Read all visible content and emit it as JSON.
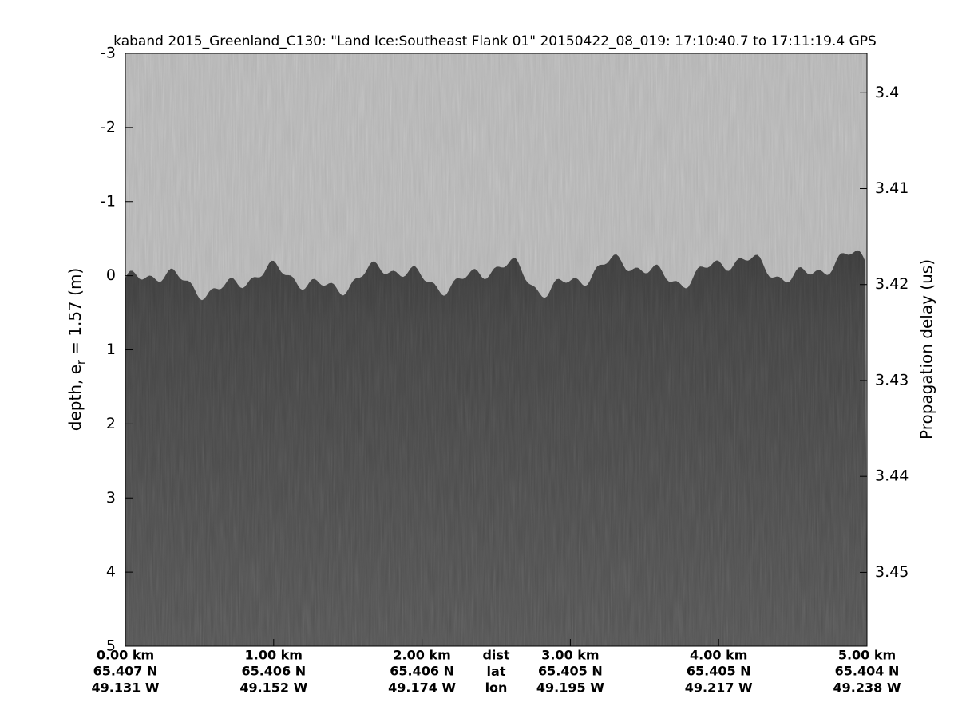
{
  "chart_data": {
    "type": "radargram",
    "title": "kaband 2015_Greenland_C130: \"Land Ice:Southeast Flank 01\"  20150422_08_019: 17:10:40.7 to 17:11:19.4 GPS",
    "ylabel": {
      "main": "depth, e",
      "sub": "r",
      "rest": " = 1.57 (m)"
    },
    "y2label": "Propagation delay (us)",
    "ylim": [
      -3,
      5
    ],
    "yticks": [
      -3,
      -2,
      -1,
      0,
      1,
      2,
      3,
      4,
      5
    ],
    "y2lim": [
      3.3959,
      3.4577
    ],
    "y2ticks": [
      3.4,
      3.41,
      3.42,
      3.43,
      3.44,
      3.45
    ],
    "xlim": [
      0,
      5
    ],
    "xticks": [
      {
        "value": 0,
        "label": "0.00 km"
      },
      {
        "value": 1,
        "label": "1.00 km"
      },
      {
        "value": 2,
        "label": "2.00 km"
      },
      {
        "value": 3,
        "label": "3.00 km"
      },
      {
        "value": 4,
        "label": "4.00 km"
      },
      {
        "value": 5,
        "label": "5.00 km"
      }
    ],
    "lat": [
      "65.407 N",
      "65.406 N",
      "65.406 N",
      "65.405 N",
      "65.405 N",
      "65.404 N"
    ],
    "lon": [
      "49.131 W",
      "49.152 W",
      "49.174 W",
      "49.195 W",
      "49.217 W",
      "49.238 W"
    ],
    "row_labels": [
      "dist",
      "lat",
      "lon"
    ]
  }
}
